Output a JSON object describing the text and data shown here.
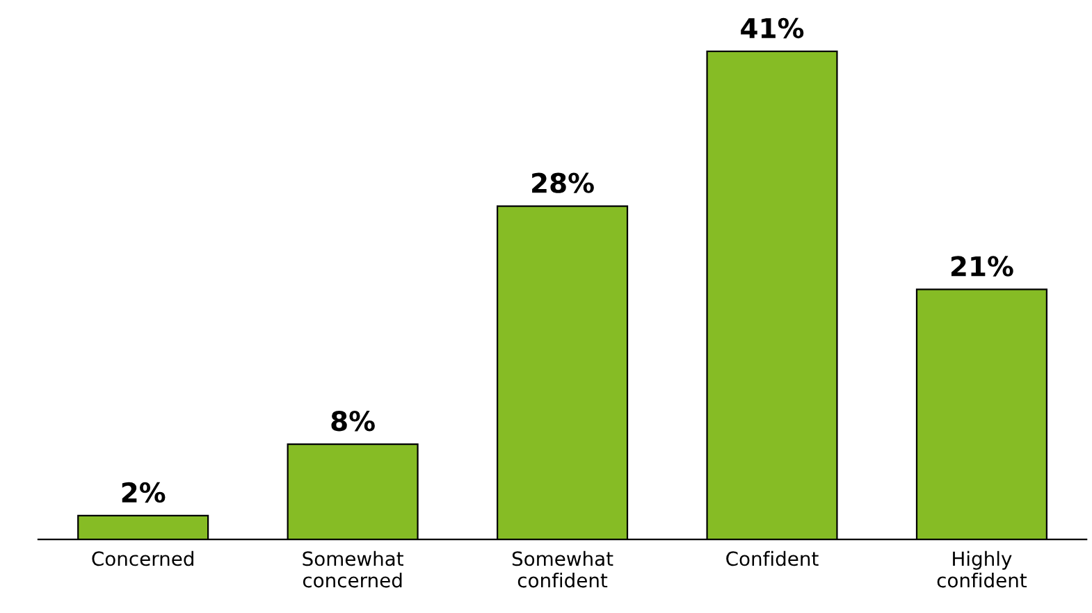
{
  "chart_data": {
    "type": "bar",
    "categories": [
      "Concerned",
      "Somewhat\nconcerned",
      "Somewhat\nconfident",
      "Confident",
      "Highly\nconfident"
    ],
    "values": [
      2,
      8,
      28,
      41,
      21
    ],
    "value_labels": [
      "2%",
      "8%",
      "28%",
      "41%",
      "21%"
    ],
    "color": "#86bc25",
    "grid": false,
    "legend": false
  }
}
